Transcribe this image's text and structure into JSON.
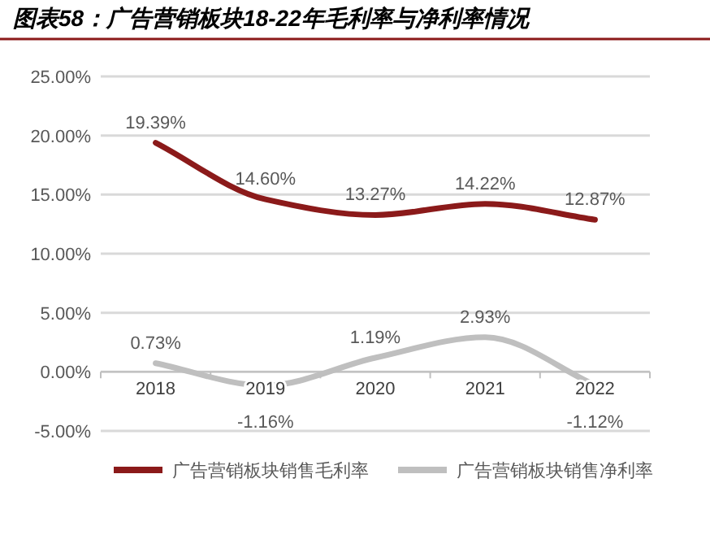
{
  "chart_data": {
    "type": "line",
    "title": "图表58：广告营销板块18-22年毛利率与净利率情况",
    "categories": [
      "2018",
      "2019",
      "2020",
      "2021",
      "2022"
    ],
    "series": [
      {
        "name": "广告营销板块销售毛利率",
        "color": "#8b1a1a",
        "values": [
          19.39,
          14.6,
          13.27,
          14.22,
          12.87
        ],
        "value_labels": [
          "19.39%",
          "14.60%",
          "13.27%",
          "14.22%",
          "12.87%"
        ]
      },
      {
        "name": "广告营销板块销售净利率",
        "color": "#bfbfbf",
        "values": [
          0.73,
          -1.16,
          1.19,
          2.93,
          -1.12
        ],
        "value_labels": [
          "0.73%",
          "-1.16%",
          "1.19%",
          "2.93%",
          "-1.12%"
        ]
      }
    ],
    "ylim": [
      -5,
      25
    ],
    "yticks": [
      {
        "value": -5,
        "label": "-5.00%"
      },
      {
        "value": 0,
        "label": "0.00%"
      },
      {
        "value": 5,
        "label": "5.00%"
      },
      {
        "value": 10,
        "label": "10.00%"
      },
      {
        "value": 15,
        "label": "15.00%"
      },
      {
        "value": 20,
        "label": "20.00%"
      },
      {
        "value": 25,
        "label": "25.00%"
      }
    ],
    "grid": "y",
    "legend": "bottom",
    "marker": "none",
    "line_style": "solid"
  }
}
